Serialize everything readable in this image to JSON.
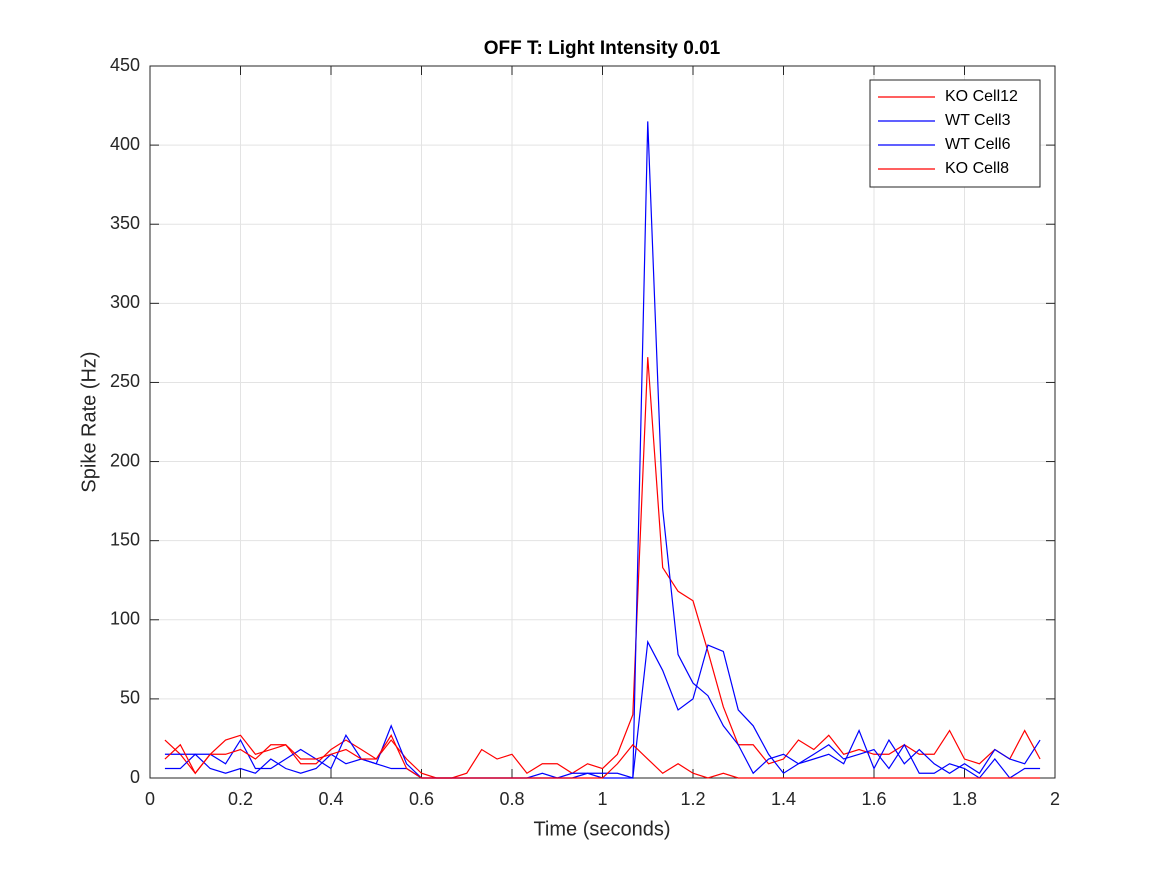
{
  "chart_data": {
    "type": "line",
    "title": "OFF T: Light Intensity 0.01",
    "x_label": "Time (seconds)",
    "y_label": "Spike Rate (Hz)",
    "x": [
      0.033,
      0.067,
      0.1,
      0.133,
      0.167,
      0.2,
      0.233,
      0.267,
      0.3,
      0.333,
      0.367,
      0.4,
      0.433,
      0.467,
      0.5,
      0.533,
      0.567,
      0.6,
      0.633,
      0.667,
      0.7,
      0.733,
      0.767,
      0.8,
      0.833,
      0.867,
      0.9,
      0.933,
      0.967,
      1,
      1.033,
      1.067,
      1.1,
      1.133,
      1.167,
      1.2,
      1.233,
      1.267,
      1.3,
      1.333,
      1.367,
      1.4,
      1.433,
      1.467,
      1.5,
      1.533,
      1.567,
      1.6,
      1.633,
      1.667,
      1.7,
      1.733,
      1.767,
      1.8,
      1.833,
      1.867,
      1.9,
      1.933,
      1.967
    ],
    "series": [
      {
        "name": "KO Cell12",
        "color": "#ff0000",
        "values": [
          24,
          15,
          3,
          15,
          24,
          27,
          15,
          18,
          21,
          9,
          9,
          18,
          24,
          18,
          12,
          24,
          12,
          3,
          0,
          0,
          3,
          18,
          12,
          15,
          3,
          9,
          9,
          3,
          9,
          6,
          15,
          40,
          266,
          133,
          118,
          112,
          80,
          45,
          21,
          21,
          9,
          12,
          24,
          18,
          27,
          15,
          18,
          15,
          15,
          21,
          15,
          15,
          30,
          12,
          9,
          18,
          12,
          30,
          12
        ]
      },
      {
        "name": "WT Cell3",
        "color": "#0000ff",
        "values": [
          6,
          6,
          15,
          15,
          9,
          24,
          6,
          6,
          12,
          18,
          12,
          6,
          27,
          12,
          9,
          33,
          9,
          0,
          0,
          0,
          0,
          0,
          0,
          0,
          0,
          3,
          0,
          0,
          3,
          3,
          3,
          0,
          415,
          170,
          78,
          60,
          52,
          33,
          21,
          3,
          12,
          15,
          9,
          12,
          15,
          9,
          30,
          6,
          24,
          9,
          18,
          9,
          3,
          9,
          3,
          18,
          12,
          9,
          24
        ]
      },
      {
        "name": "WT Cell6",
        "color": "#0000ff",
        "values": [
          15,
          15,
          15,
          6,
          3,
          6,
          3,
          12,
          6,
          3,
          6,
          15,
          9,
          12,
          9,
          6,
          6,
          0,
          0,
          0,
          0,
          0,
          0,
          0,
          0,
          0,
          0,
          3,
          3,
          0,
          0,
          0,
          86,
          68,
          43,
          50,
          84,
          80,
          43,
          33,
          15,
          3,
          9,
          15,
          21,
          12,
          15,
          18,
          6,
          21,
          3,
          3,
          9,
          6,
          0,
          12,
          0,
          6,
          6
        ]
      },
      {
        "name": "KO Cell8",
        "color": "#ff0000",
        "values": [
          12,
          21,
          3,
          15,
          15,
          18,
          12,
          21,
          21,
          12,
          12,
          15,
          18,
          12,
          12,
          27,
          6,
          0,
          0,
          0,
          0,
          0,
          0,
          0,
          0,
          0,
          0,
          0,
          0,
          0,
          9,
          21,
          12,
          3,
          9,
          3,
          0,
          3,
          0,
          0,
          0,
          0,
          0,
          0,
          0,
          0,
          0,
          0,
          0,
          0,
          0,
          0,
          0,
          0,
          0,
          0,
          0,
          0,
          0
        ]
      }
    ],
    "xlim": [
      0,
      2
    ],
    "xticks": [
      0,
      0.2,
      0.4,
      0.6,
      0.8,
      1,
      1.2,
      1.4,
      1.6,
      1.8,
      2
    ],
    "ylim": [
      0,
      450
    ],
    "yticks": [
      0,
      50,
      100,
      150,
      200,
      250,
      300,
      350,
      400,
      450
    ],
    "grid": true,
    "legend": "northeast"
  }
}
